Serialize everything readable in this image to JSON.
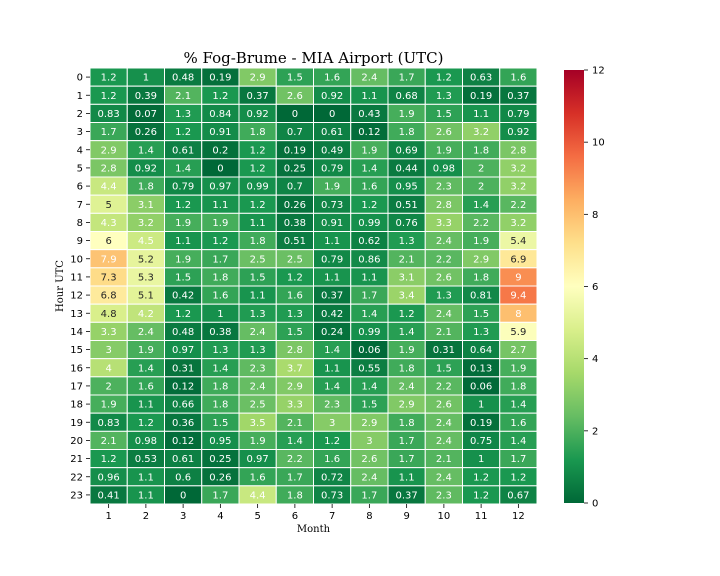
{
  "chart_data": {
    "type": "heatmap",
    "title": "% Fog-Brume - MIA Airport (UTC)",
    "xlabel": "Month",
    "ylabel": "Hour UTC",
    "x": [
      "1",
      "2",
      "3",
      "4",
      "5",
      "6",
      "7",
      "8",
      "9",
      "10",
      "11",
      "12"
    ],
    "y": [
      "0",
      "1",
      "2",
      "3",
      "4",
      "5",
      "6",
      "7",
      "8",
      "9",
      "10",
      "11",
      "12",
      "13",
      "14",
      "15",
      "16",
      "17",
      "18",
      "19",
      "20",
      "21",
      "22",
      "23"
    ],
    "values": [
      [
        1.2,
        1,
        0.48,
        0.19,
        2.9,
        1.5,
        1.6,
        2.4,
        1.7,
        1.2,
        0.63,
        1.6
      ],
      [
        1.2,
        0.39,
        2.1,
        1.2,
        0.37,
        2.6,
        0.92,
        1.1,
        0.68,
        1.3,
        0.19,
        0.37
      ],
      [
        0.83,
        0.07,
        1.3,
        0.84,
        0.92,
        0,
        0,
        0.43,
        1.9,
        1.5,
        1.1,
        0.79
      ],
      [
        1.7,
        0.26,
        1.2,
        0.91,
        1.8,
        0.7,
        0.61,
        0.12,
        1.8,
        2.6,
        3.2,
        0.92
      ],
      [
        2.9,
        1.4,
        0.61,
        0.2,
        1.2,
        0.19,
        0.49,
        1.9,
        0.69,
        1.9,
        1.8,
        2.8
      ],
      [
        2.8,
        0.92,
        1.4,
        0,
        1.2,
        0.25,
        0.79,
        1.4,
        0.44,
        0.98,
        2,
        3.2
      ],
      [
        4.4,
        1.8,
        0.79,
        0.97,
        0.99,
        0.7,
        1.9,
        1.6,
        0.95,
        2.3,
        2,
        3.2
      ],
      [
        5,
        3.1,
        1.2,
        1.1,
        1.2,
        0.26,
        0.73,
        1.2,
        0.51,
        2.8,
        1.4,
        2.2
      ],
      [
        4.3,
        3.2,
        1.9,
        1.9,
        1.1,
        0.38,
        0.91,
        0.99,
        0.76,
        3.3,
        2.2,
        3.2
      ],
      [
        6,
        4.5,
        1.1,
        1.2,
        1.8,
        0.51,
        1.1,
        0.62,
        1.3,
        2.4,
        1.9,
        5.4
      ],
      [
        7.9,
        5.2,
        1.9,
        1.7,
        2.5,
        2.5,
        0.79,
        0.86,
        2.1,
        2.2,
        2.9,
        6.9
      ],
      [
        7.3,
        5.3,
        1.5,
        1.8,
        1.5,
        1.2,
        1.1,
        1.1,
        3.1,
        2.6,
        1.8,
        9
      ],
      [
        6.8,
        5.1,
        0.42,
        1.6,
        1.1,
        1.6,
        0.37,
        1.7,
        3.4,
        1.3,
        0.81,
        9.4
      ],
      [
        4.8,
        4.2,
        1.2,
        1,
        1.3,
        1.3,
        0.42,
        1.4,
        1.2,
        2.4,
        1.5,
        8
      ],
      [
        3.3,
        2.4,
        0.48,
        0.38,
        2.4,
        1.5,
        0.24,
        0.99,
        1.4,
        2.1,
        1.3,
        5.9
      ],
      [
        3,
        1.9,
        0.97,
        1.3,
        1.3,
        2.8,
        1.4,
        0.06,
        1.9,
        0.31,
        0.64,
        2.7
      ],
      [
        4,
        1.4,
        0.31,
        1.4,
        2.3,
        3.7,
        1.1,
        0.55,
        1.8,
        1.5,
        0.13,
        1.9
      ],
      [
        2,
        1.6,
        0.12,
        1.8,
        2.4,
        2.9,
        1.4,
        1.4,
        2.4,
        2.2,
        0.06,
        1.8
      ],
      [
        1.9,
        1.1,
        0.66,
        1.8,
        2.5,
        3.3,
        2.3,
        1.5,
        2.9,
        2.6,
        1,
        1.4
      ],
      [
        0.83,
        1.2,
        0.36,
        1.5,
        3.5,
        2.1,
        3,
        2.9,
        1.8,
        2.4,
        0.19,
        1.6
      ],
      [
        2.1,
        0.98,
        0.12,
        0.95,
        1.9,
        1.4,
        1.2,
        3,
        1.7,
        2.4,
        0.75,
        1.4
      ],
      [
        1.2,
        0.53,
        0.61,
        0.25,
        0.97,
        2.2,
        1.6,
        2.6,
        1.7,
        2.1,
        1,
        1.7
      ],
      [
        0.96,
        1.1,
        0.6,
        0.26,
        1.6,
        1.7,
        0.72,
        2.4,
        1.1,
        2.4,
        1.2,
        1.2
      ],
      [
        0.41,
        1.1,
        0,
        1.7,
        4.4,
        1.8,
        0.73,
        1.7,
        0.37,
        2.3,
        1.2,
        0.67
      ]
    ],
    "colorbar": {
      "colormap": "RdYlGn_r",
      "vmin": 0,
      "vmax": 12,
      "ticks": [
        "0",
        "2",
        "4",
        "6",
        "8",
        "10",
        "12"
      ]
    },
    "grid": false
  }
}
